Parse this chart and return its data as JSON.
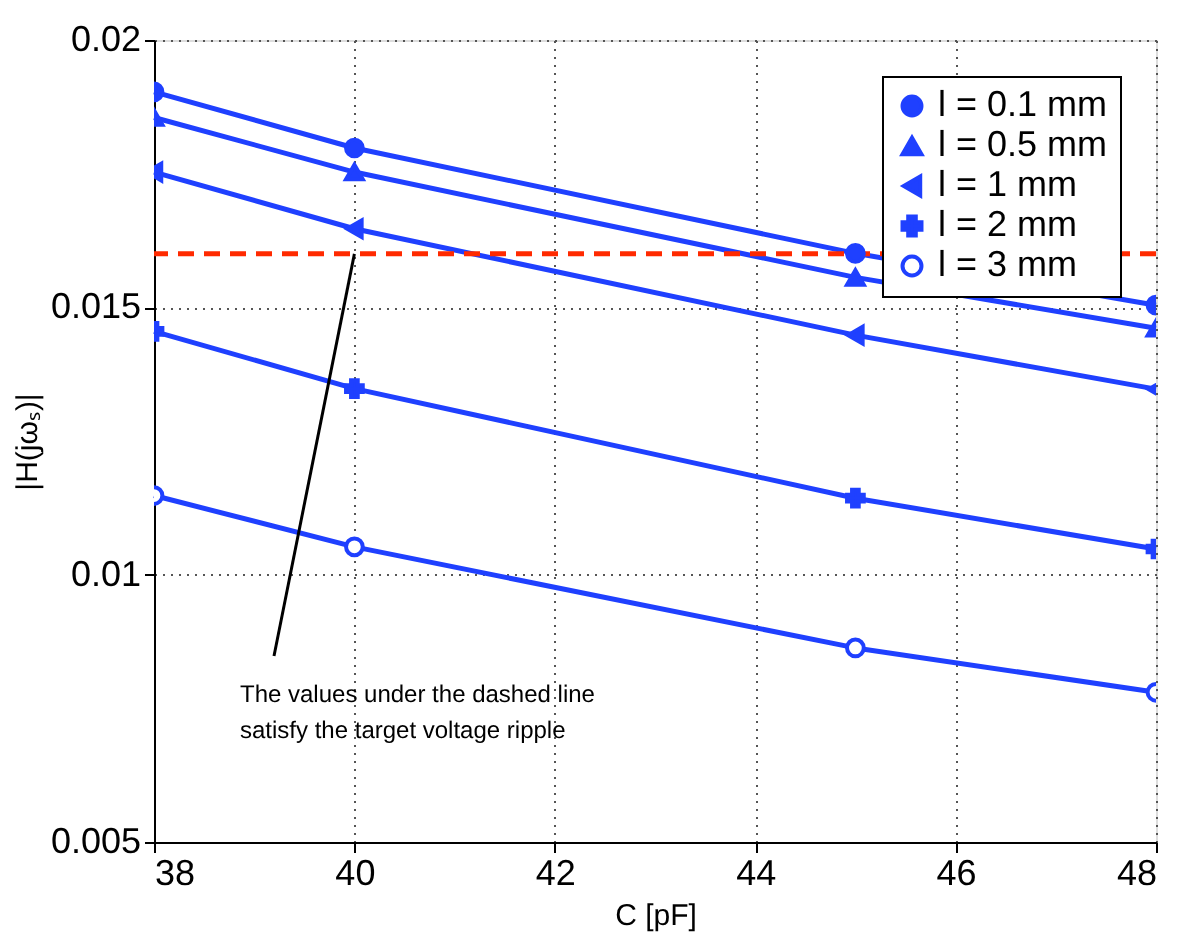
{
  "chart_data": {
    "type": "line",
    "xlabel": "C [pF]",
    "ylabel": "|H(jωₛ)|",
    "xlim": [
      38,
      48
    ],
    "xticks": [
      38,
      40,
      42,
      44,
      46,
      48
    ],
    "ylim": [
      0.005,
      0.02
    ],
    "yticks": [
      0.005,
      0.01,
      0.015,
      0.02
    ],
    "grid": true,
    "legend": "top right",
    "line_style": "solid",
    "x": [
      38,
      40,
      45,
      48
    ],
    "series": [
      {
        "name": "l = 0.1 mm",
        "color": "#1f40ff",
        "marker": "circle",
        "values": [
          0.01903,
          0.01798,
          0.01601,
          0.01504
        ]
      },
      {
        "name": "l = 0.5 mm",
        "color": "#1f40ff",
        "marker": "triangle",
        "values": [
          0.01855,
          0.01753,
          0.01556,
          0.01461
        ]
      },
      {
        "name": "l = 1 mm",
        "color": "#1f40ff",
        "marker": "triangle-left",
        "values": [
          0.01753,
          0.01647,
          0.01448,
          0.01347
        ]
      },
      {
        "name": "l = 2 mm",
        "color": "#1f40ff",
        "marker": "cross",
        "values": [
          0.01455,
          0.01348,
          0.01143,
          0.01048
        ]
      },
      {
        "name": "l = 3 mm",
        "color": "#1f40ff",
        "marker": "circle-open",
        "values": [
          0.01148,
          0.01052,
          0.00863,
          0.0078
        ]
      }
    ],
    "ref_lines": [
      {
        "axis": "y",
        "value": 0.016,
        "color": "#ff2a00",
        "line_style": "dashed"
      }
    ],
    "annotations": [
      {
        "text": "The values under the dashed line\nsatisfy the target voltage ripple",
        "x": 40,
        "y": 0.016
      }
    ]
  }
}
